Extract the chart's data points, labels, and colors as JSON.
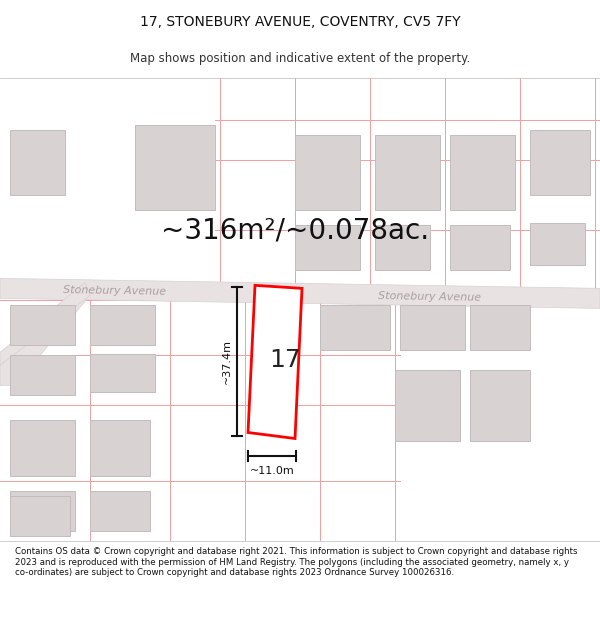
{
  "title": "17, STONEBURY AVENUE, COVENTRY, CV5 7FY",
  "subtitle": "Map shows position and indicative extent of the property.",
  "area_text": "~316m²/~0.078ac.",
  "width_label": "~11.0m",
  "height_label": "~37.4m",
  "number_label": "17",
  "road_label_left": "Stonebury Avenue",
  "road_label_right": "Stonebury Avenue",
  "footer": "Contains OS data © Crown copyright and database right 2021. This information is subject to Crown copyright and database rights 2023 and is reproduced with the permission of HM Land Registry. The polygons (including the associated geometry, namely x, y co-ordinates) are subject to Crown copyright and database rights 2023 Ordnance Survey 100026316.",
  "background_color": "#ffffff",
  "map_bg": "#f7f3f3",
  "building_fill": "#d8d2d2",
  "building_edge": "#c4bcbc",
  "plot_fill": "#ffffff",
  "plot_stroke": "#ff0000",
  "dim_line_color": "#111111",
  "road_fill": "#e8e2e2",
  "road_text_color": "#aaa0a0",
  "pink_line": "#f0a0a0",
  "title_fontsize": 10,
  "subtitle_fontsize": 8.5,
  "area_fontsize": 20,
  "footer_fontsize": 6.2,
  "label_fontsize": 8.0,
  "number_fontsize": 18
}
